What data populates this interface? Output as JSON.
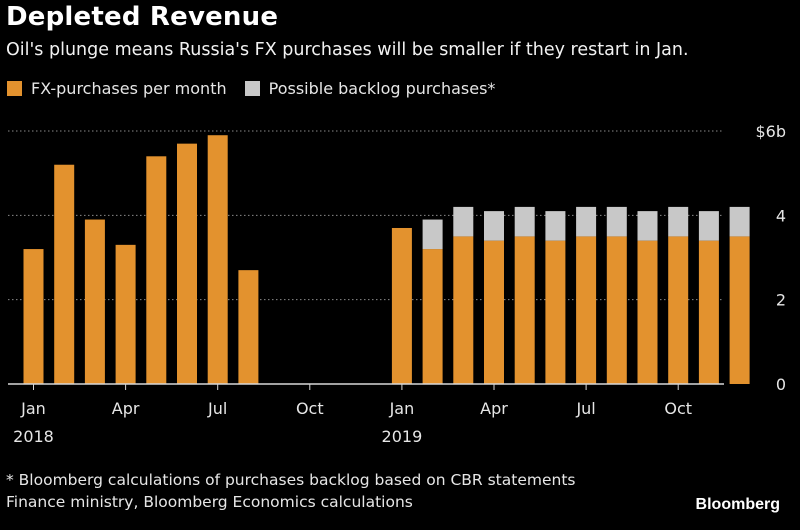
{
  "header": {
    "title": "Depleted Revenue",
    "subtitle": "Oil's plunge means Russia's FX purchases will be smaller if they restart in Jan."
  },
  "legend": [
    {
      "label": "FX-purchases per month",
      "color": "#e3922e"
    },
    {
      "label": "Possible backlog purchases*",
      "color": "#c8c8c8"
    }
  ],
  "footer": {
    "note": "* Bloomberg calculations of purchases backlog based on CBR statements",
    "source": "Finance ministry, Bloomberg Economics calculations",
    "brand": "Bloomberg"
  },
  "chart_data": {
    "type": "bar",
    "stacked": true,
    "ylim": [
      0,
      6
    ],
    "yticks": [
      {
        "value": 0,
        "label": "0"
      },
      {
        "value": 2,
        "label": "2"
      },
      {
        "value": 4,
        "label": "4"
      },
      {
        "value": 6,
        "label": "$6b"
      }
    ],
    "xticks": [
      {
        "index": 0,
        "label": "Jan",
        "year": "2018"
      },
      {
        "index": 3,
        "label": "Apr"
      },
      {
        "index": 6,
        "label": "Jul"
      },
      {
        "index": 9,
        "label": "Oct"
      },
      {
        "index": 12,
        "label": "Jan",
        "year": "2019"
      },
      {
        "index": 15,
        "label": "Apr"
      },
      {
        "index": 18,
        "label": "Jul"
      },
      {
        "index": 21,
        "label": "Oct"
      }
    ],
    "categories": [
      "Jan 2018",
      "Feb 2018",
      "Mar 2018",
      "Apr 2018",
      "May 2018",
      "Jun 2018",
      "Jul 2018",
      "Aug 2018",
      "Sep 2018",
      "Oct 2018",
      "Nov 2018",
      "Dec 2018",
      "Jan 2019",
      "Feb 2019",
      "Mar 2019",
      "Apr 2019",
      "May 2019",
      "Jun 2019",
      "Jul 2019",
      "Aug 2019",
      "Sep 2019",
      "Oct 2019",
      "Nov 2019",
      "Dec 2019"
    ],
    "series": [
      {
        "name": "FX-purchases per month",
        "color": "#e3922e",
        "values": [
          3.2,
          5.2,
          3.9,
          3.3,
          5.4,
          5.7,
          5.9,
          2.7,
          null,
          null,
          null,
          null,
          3.7,
          3.2,
          3.5,
          3.4,
          3.5,
          3.4,
          3.5,
          3.5,
          3.4,
          3.5,
          3.4,
          3.5
        ]
      },
      {
        "name": "Possible backlog purchases*",
        "color": "#c8c8c8",
        "values": [
          null,
          null,
          null,
          null,
          null,
          null,
          null,
          null,
          null,
          null,
          null,
          null,
          null,
          0.7,
          0.7,
          0.7,
          0.7,
          0.7,
          0.7,
          0.7,
          0.7,
          0.7,
          0.7,
          0.7
        ]
      }
    ],
    "grid": true
  }
}
